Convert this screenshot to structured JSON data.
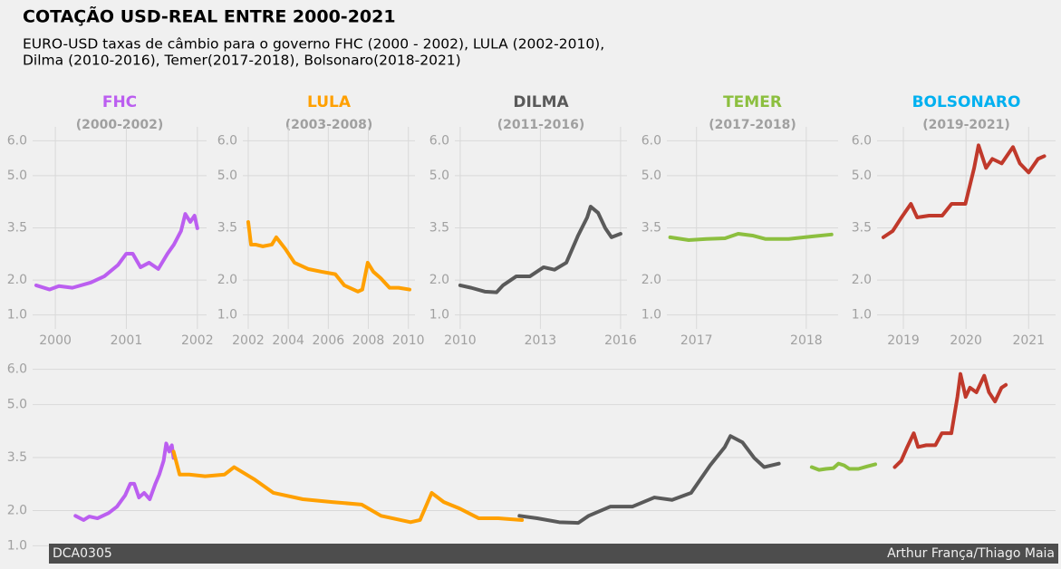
{
  "title": "COTAÇÃO USD-REAL ENTRE 2000-2021",
  "subtitle": [
    "EURO-USD taxas de câmbio para o governo FHC (2000 - 2002), LULA (2002-2010),",
    "Dilma (2010-2016), Temer(2017-2018), Bolsonaro(2018-2021)"
  ],
  "footer_left": "DCA0305",
  "footer_right": "Arthur França/Thiago Maia",
  "chart_data": [
    {
      "type": "line",
      "title": "FHC",
      "subtitle": "(2000-2002)",
      "title_color": "#bb5ef0",
      "grid": true,
      "xlim": [
        1999.68,
        2002.13
      ],
      "xticks": [
        2000,
        2001,
        2002
      ],
      "ylim": [
        0.6,
        6.4
      ],
      "yticks": [
        {
          "value": 1,
          "label": "1.0"
        },
        {
          "value": 2,
          "label": "2.0"
        },
        {
          "value": 3.5,
          "label": "3.5"
        },
        {
          "value": 5,
          "label": "5.0"
        },
        {
          "value": 6,
          "label": "6.0"
        }
      ],
      "series": [
        {
          "color": "#bb5ef0",
          "x": [
            1999.73,
            1999.92,
            2000.05,
            2000.24,
            2000.5,
            2000.69,
            2000.88,
            2001.0,
            2001.09,
            2001.2,
            2001.32,
            2001.45,
            2001.58,
            2001.67,
            2001.77,
            2001.83,
            2001.9,
            2001.96,
            2002.0
          ],
          "values": [
            1.85,
            1.73,
            1.83,
            1.78,
            1.93,
            2.11,
            2.43,
            2.76,
            2.76,
            2.37,
            2.5,
            2.32,
            2.76,
            3.02,
            3.41,
            3.9,
            3.67,
            3.85,
            3.49
          ]
        }
      ]
    },
    {
      "type": "line",
      "title": "LULA",
      "subtitle": "(2003-2008)",
      "title_color": "#ffa000",
      "grid": true,
      "xlim": [
        2001.73,
        2010.33
      ],
      "xticks": [
        2002,
        2004,
        2006,
        2008,
        2010
      ],
      "ylim": [
        0.6,
        6.4
      ],
      "yticks": [
        {
          "value": 1,
          "label": "1.0"
        },
        {
          "value": 2,
          "label": "2.0"
        },
        {
          "value": 3.5,
          "label": "3.5"
        },
        {
          "value": 5,
          "label": "5.0"
        },
        {
          "value": 6,
          "label": "6.0"
        }
      ],
      "series": [
        {
          "color": "#ffa000",
          "x": [
            2002.0,
            2002.14,
            2002.36,
            2002.73,
            2003.18,
            2003.4,
            2003.86,
            2004.31,
            2004.99,
            2005.67,
            2006.35,
            2006.8,
            2007.48,
            2007.7,
            2007.97,
            2008.25,
            2008.61,
            2009.06,
            2009.51,
            2010.06
          ],
          "values": [
            3.67,
            3.02,
            3.02,
            2.97,
            3.02,
            3.23,
            2.89,
            2.5,
            2.32,
            2.24,
            2.17,
            1.85,
            1.67,
            1.73,
            2.5,
            2.24,
            2.06,
            1.78,
            1.78,
            1.73
          ]
        }
      ]
    },
    {
      "type": "line",
      "title": "DILMA",
      "subtitle": "(2011-2016)",
      "title_color": "#5a5a5a",
      "grid": true,
      "xlim": [
        2009.8,
        2016.24
      ],
      "xticks": [
        2010,
        2013,
        2016
      ],
      "ylim": [
        0.6,
        6.4
      ],
      "yticks": [
        {
          "value": 1,
          "label": "1.0"
        },
        {
          "value": 2,
          "label": "2.0"
        },
        {
          "value": 3.5,
          "label": "3.5"
        },
        {
          "value": 5,
          "label": "5.0"
        },
        {
          "value": 6,
          "label": "6.0"
        }
      ],
      "series": [
        {
          "color": "#5a5a5a",
          "x": [
            2010.0,
            2010.41,
            2010.92,
            2011.36,
            2011.6,
            2012.1,
            2012.61,
            2013.12,
            2013.53,
            2013.97,
            2014.41,
            2014.75,
            2014.88,
            2015.16,
            2015.43,
            2015.66,
            2016.0
          ],
          "values": [
            1.85,
            1.78,
            1.67,
            1.65,
            1.85,
            2.11,
            2.11,
            2.37,
            2.3,
            2.5,
            3.28,
            3.8,
            4.11,
            3.93,
            3.49,
            3.23,
            3.33
          ]
        }
      ]
    },
    {
      "type": "line",
      "title": "TEMER",
      "subtitle": "(2017-2018)",
      "title_color": "#8cbf3f",
      "grid": true,
      "xlim": [
        2016.73,
        2018.29
      ],
      "xticks": [
        2017,
        2018
      ],
      "ylim": [
        0.6,
        6.4
      ],
      "yticks": [
        {
          "value": 1,
          "label": "1.0"
        },
        {
          "value": 2,
          "label": "2.0"
        },
        {
          "value": 3.5,
          "label": "3.5"
        },
        {
          "value": 5,
          "label": "5.0"
        },
        {
          "value": 6,
          "label": "6.0"
        }
      ],
      "series": [
        {
          "color": "#8cbf3f",
          "x": [
            2016.76,
            2016.93,
            2017.09,
            2017.26,
            2017.38,
            2017.51,
            2017.63,
            2017.84,
            2018.04,
            2018.23
          ],
          "values": [
            3.23,
            3.15,
            3.18,
            3.2,
            3.33,
            3.28,
            3.18,
            3.18,
            3.25,
            3.31
          ]
        }
      ]
    },
    {
      "type": "line",
      "title": "BOLSONARO",
      "subtitle": "(2019-2021)",
      "title_color": "#00b0f0",
      "grid": true,
      "xlim": [
        2018.58,
        2021.43
      ],
      "xticks": [
        2019,
        2020,
        2021
      ],
      "ylim": [
        0.6,
        6.4
      ],
      "yticks": [
        {
          "value": 1,
          "label": "1.0"
        },
        {
          "value": 2,
          "label": "2.0"
        },
        {
          "value": 3.5,
          "label": "3.5"
        },
        {
          "value": 5,
          "label": "5.0"
        },
        {
          "value": 6,
          "label": "6.0"
        }
      ],
      "series": [
        {
          "color": "#c0392b",
          "x": [
            2018.68,
            2018.83,
            2018.97,
            2019.12,
            2019.22,
            2019.41,
            2019.62,
            2019.77,
            2019.99,
            2020.13,
            2020.2,
            2020.32,
            2020.42,
            2020.57,
            2020.75,
            2020.86,
            2021.0,
            2021.15,
            2021.25
          ],
          "values": [
            3.23,
            3.41,
            3.8,
            4.19,
            3.8,
            3.85,
            3.85,
            4.19,
            4.19,
            5.22,
            5.87,
            5.22,
            5.48,
            5.35,
            5.82,
            5.35,
            5.09,
            5.48,
            5.56
          ]
        }
      ]
    },
    {
      "type": "line",
      "series_from": [
        0,
        1,
        2,
        3,
        4
      ],
      "grid": true,
      "xlim": [
        1998.74,
        2022.4
      ],
      "ylim": [
        0.6,
        6.35
      ],
      "yticks": [
        {
          "value": 1,
          "label": "1.0"
        },
        {
          "value": 2,
          "label": "2.0"
        },
        {
          "value": 3.5,
          "label": "3.5"
        },
        {
          "value": 5,
          "label": "5.0"
        },
        {
          "value": 6,
          "label": "6.0"
        }
      ]
    }
  ]
}
